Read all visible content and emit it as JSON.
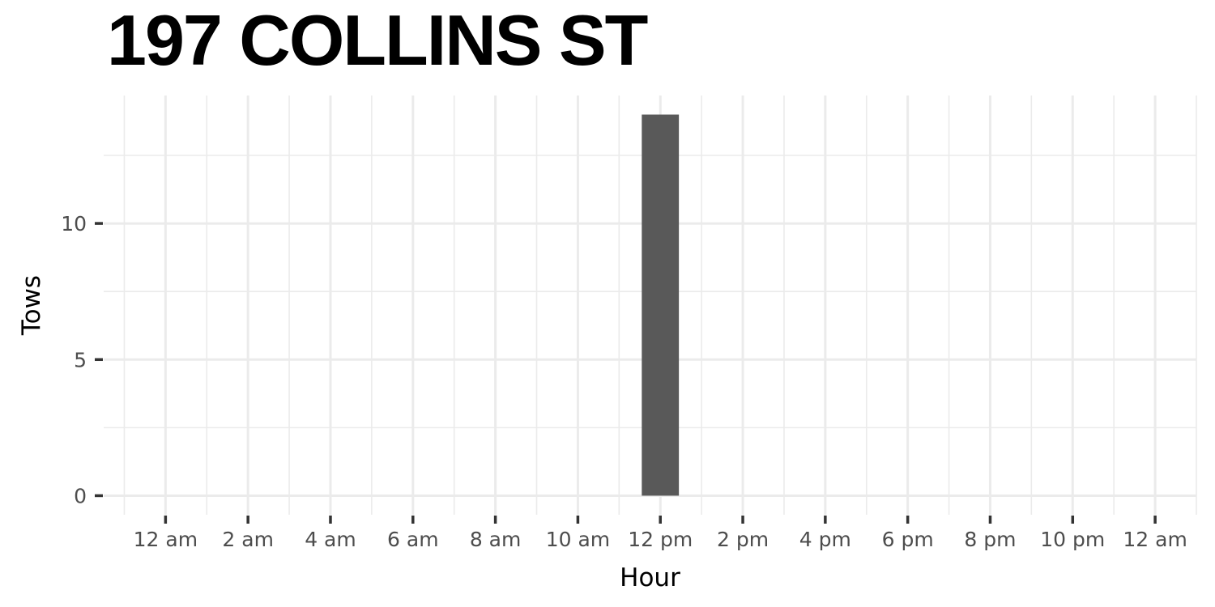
{
  "chart_data": {
    "type": "bar",
    "title": "197 COLLINS ST",
    "xlabel": "Hour",
    "ylabel": "Tows",
    "x_ticks": [
      {
        "hour": 0,
        "label": "12 am"
      },
      {
        "hour": 2,
        "label": "2 am"
      },
      {
        "hour": 4,
        "label": "4 am"
      },
      {
        "hour": 6,
        "label": "6 am"
      },
      {
        "hour": 8,
        "label": "8 am"
      },
      {
        "hour": 10,
        "label": "10 am"
      },
      {
        "hour": 12,
        "label": "12 pm"
      },
      {
        "hour": 14,
        "label": "2 pm"
      },
      {
        "hour": 16,
        "label": "4 pm"
      },
      {
        "hour": 18,
        "label": "6 pm"
      },
      {
        "hour": 20,
        "label": "8 pm"
      },
      {
        "hour": 22,
        "label": "10 pm"
      },
      {
        "hour": 24,
        "label": "12 am"
      }
    ],
    "y_ticks": [
      0,
      5,
      10
    ],
    "xlim": [
      -1.5,
      25
    ],
    "ylim": [
      -0.7,
      14.7
    ],
    "bars": [
      {
        "hour": 12,
        "value": 14
      }
    ],
    "bar_color": "#595959",
    "grid": true
  }
}
